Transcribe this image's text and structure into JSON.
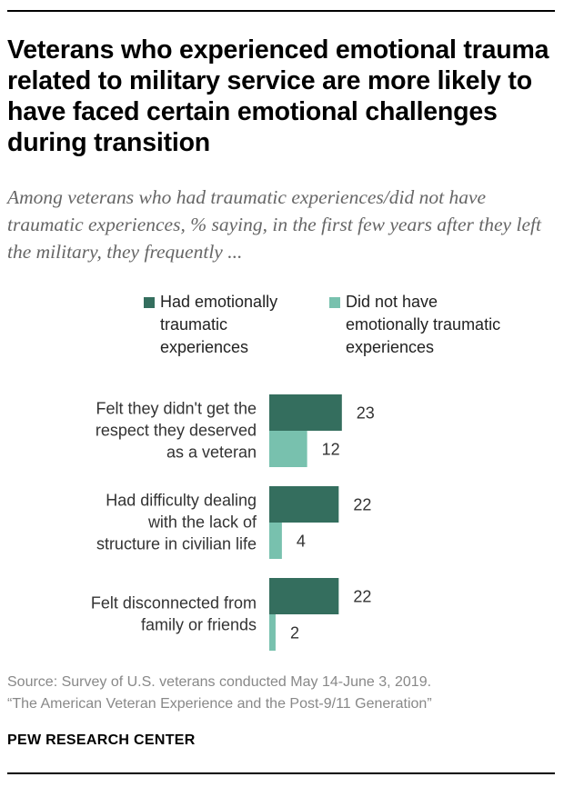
{
  "title": "Veterans who experienced emotional trauma related to military service are more likely to have faced certain emotional challenges during transition",
  "subtitle": "Among veterans who had traumatic experiences/did not have traumatic experiences, % saying, in the first few years after they left the military, they frequently ...",
  "colors": {
    "had": "#346e5e",
    "not": "#78c1ae",
    "label": "#333333"
  },
  "legend": [
    {
      "key": "had",
      "lines": [
        "Had emotionally",
        "traumatic",
        "experiences"
      ]
    },
    {
      "key": "not",
      "lines": [
        "Did not have",
        "emotionally traumatic",
        "experiences"
      ]
    }
  ],
  "chart_data": {
    "type": "bar",
    "orientation": "horizontal",
    "title": "Veterans who experienced emotional trauma related to military service are more likely to have faced certain emotional challenges during transition",
    "subtitle": "Among veterans who had traumatic experiences/did not have traumatic experiences, % saying, in the first few years after they left the military, they frequently ...",
    "xlabel": "",
    "ylabel": "",
    "xlim": [
      0,
      100
    ],
    "grid": false,
    "legend_position": "top",
    "categories": [
      [
        "Felt they didn't get the",
        "respect they deserved",
        "as a veteran"
      ],
      [
        "Had difficulty dealing",
        "with the lack of",
        "structure in civilian life"
      ],
      [
        "Felt disconnected from",
        "family or friends"
      ]
    ],
    "series": [
      {
        "name": "Had emotionally traumatic experiences",
        "key": "had",
        "values": [
          23,
          22,
          22
        ]
      },
      {
        "name": "Did not have emotionally traumatic experiences",
        "key": "not",
        "values": [
          12,
          4,
          2
        ]
      }
    ]
  },
  "source": {
    "line1": "Source: Survey of U.S. veterans conducted May 14-June 3, 2019.",
    "line2": "“The American Veteran Experience and the Post-9/11 Generation”"
  },
  "brand": "PEW RESEARCH CENTER"
}
